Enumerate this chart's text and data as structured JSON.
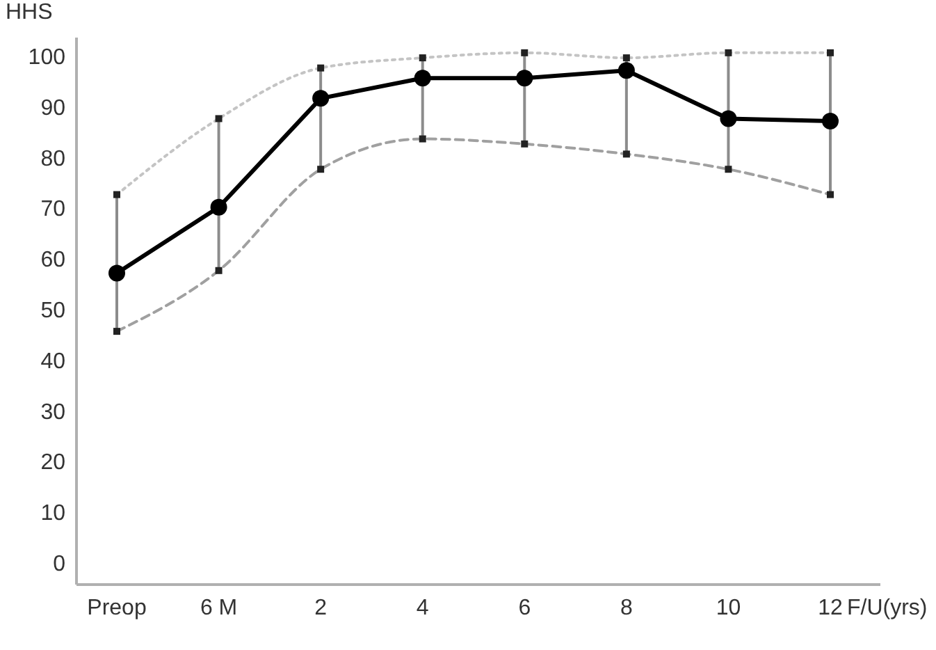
{
  "chart_data": {
    "type": "line",
    "xlabel": "F/U(yrs)",
    "ylabel": "HHS",
    "categories": [
      "Preop",
      "6 M",
      "2",
      "4",
      "6",
      "8",
      "10",
      "12"
    ],
    "series": [
      {
        "color": "#c4c4c4",
        "line_style": "dotted",
        "marker": "square",
        "values": [
          73,
          88,
          98,
          100,
          101,
          100,
          101,
          101
        ]
      },
      {
        "color": "#a0a0a0",
        "line_style": "dashed",
        "marker": "square",
        "values": [
          46,
          58,
          78,
          84,
          83,
          81,
          78,
          73
        ]
      },
      {
        "color": "#000000",
        "line_style": "solid",
        "marker": "circle",
        "values": [
          57.5,
          70.5,
          92,
          96,
          96,
          97.5,
          88,
          87.5
        ],
        "errors": [
          [
            46,
            73
          ],
          [
            58,
            88
          ],
          [
            78,
            98
          ],
          [
            84,
            100
          ],
          [
            83,
            101
          ],
          [
            81,
            100
          ],
          [
            78,
            101
          ],
          [
            73,
            101
          ]
        ]
      }
    ],
    "ylim": [
      -4,
      104
    ],
    "yticks": [
      0,
      10,
      20,
      30,
      40,
      50,
      60,
      70,
      80,
      90,
      100
    ]
  }
}
